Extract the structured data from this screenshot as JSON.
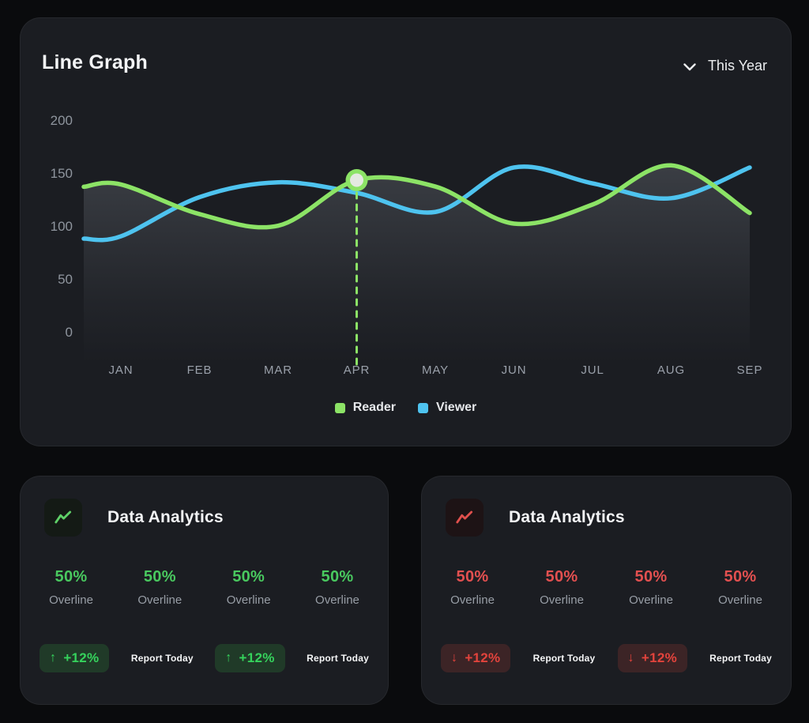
{
  "line_graph_card": {
    "title": "Line Graph",
    "period_selector": {
      "label": "This Year"
    }
  },
  "chart_data": {
    "type": "line",
    "title": "Line Graph",
    "categories": [
      "JAN",
      "FEB",
      "MAR",
      "APR",
      "MAY",
      "JUN",
      "JUL",
      "AUG",
      "SEP"
    ],
    "series": [
      {
        "name": "Reader",
        "color": "#8CE366",
        "values": [
          140,
          112,
          101,
          144,
          138,
          103,
          121,
          158,
          113
        ]
      },
      {
        "name": "Viewer",
        "color": "#4EC3EF",
        "values": [
          91,
          128,
          142,
          132,
          114,
          156,
          141,
          127,
          156
        ]
      }
    ],
    "y_ticks": [
      200,
      150,
      100,
      50,
      0
    ],
    "ylim": [
      0,
      200
    ],
    "grid": false,
    "legend_position": "bottom",
    "area_fill_series": "Reader",
    "highlight": {
      "category": "APR",
      "series": "Reader",
      "value": 144,
      "marker": true,
      "dashed_drop_line": true
    }
  },
  "analytics_cards": [
    {
      "title": "Data Analytics",
      "theme": "green",
      "accent": "#49c95f",
      "stats": [
        {
          "value": "50%",
          "label": "Overline"
        },
        {
          "value": "50%",
          "label": "Overline"
        },
        {
          "value": "50%",
          "label": "Overline"
        },
        {
          "value": "50%",
          "label": "Overline"
        }
      ],
      "badges": [
        {
          "arrow": "↑",
          "change": "+12%",
          "report_label": "Report Today"
        },
        {
          "arrow": "↑",
          "change": "+12%",
          "report_label": "Report Today"
        }
      ]
    },
    {
      "title": "Data Analytics",
      "theme": "red",
      "accent": "#e35050",
      "stats": [
        {
          "value": "50%",
          "label": "Overline"
        },
        {
          "value": "50%",
          "label": "Overline"
        },
        {
          "value": "50%",
          "label": "Overline"
        },
        {
          "value": "50%",
          "label": "Overline"
        }
      ],
      "badges": [
        {
          "arrow": "↓",
          "change": "+12%",
          "report_label": "Report Today"
        },
        {
          "arrow": "↓",
          "change": "+12%",
          "report_label": "Report Today"
        }
      ]
    }
  ]
}
